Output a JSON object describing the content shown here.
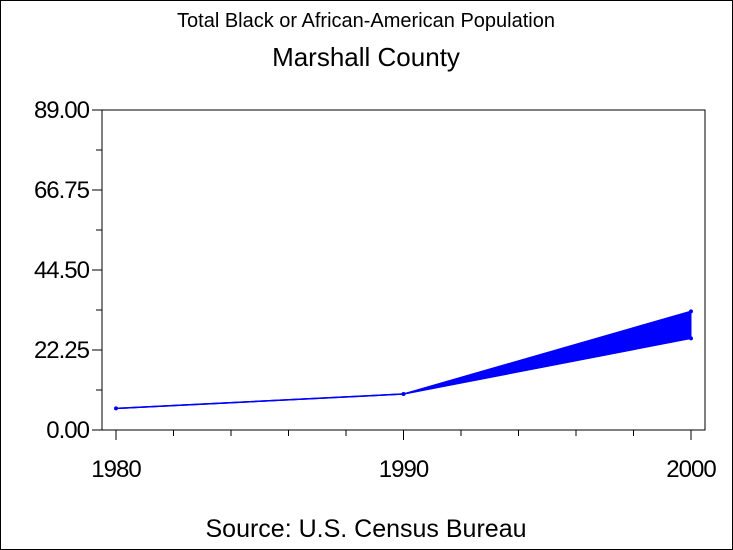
{
  "chart_data": {
    "type": "area",
    "title": "Total Black or African-American Population",
    "subtitle": "Marshall County",
    "source": "Source: U.S. Census Bureau",
    "xlabel": "",
    "ylabel": "",
    "x_ticks": [
      "1980",
      "1990",
      "2000"
    ],
    "y_ticks": [
      "0.00",
      "22.25",
      "44.50",
      "66.75",
      "89.00"
    ],
    "xlim": [
      1980,
      2000
    ],
    "ylim": [
      0,
      89
    ],
    "grid": false,
    "series": [
      {
        "x": [
          1980,
          1990,
          2000
        ],
        "lower": [
          6,
          10,
          25.5
        ],
        "upper": [
          6,
          10,
          33
        ]
      }
    ],
    "color": "#0000ff"
  }
}
